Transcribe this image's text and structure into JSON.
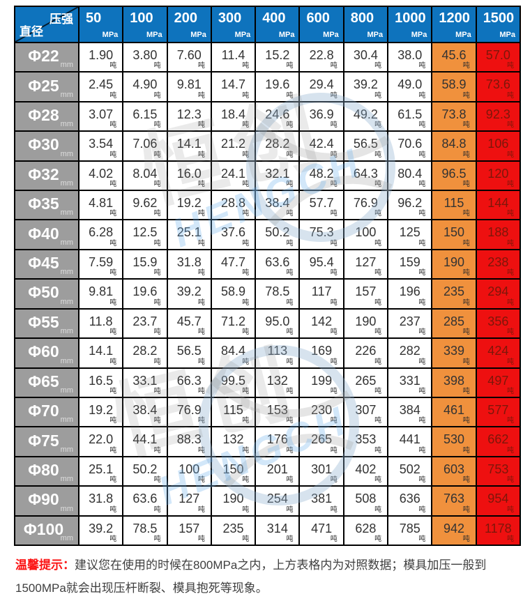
{
  "chart_data": {
    "type": "table",
    "corner_top_right": "压强",
    "corner_bottom_left": "直径",
    "pressure_unit": "MPa",
    "diameter_unit": "mm",
    "value_unit": "吨",
    "columns": [
      "50",
      "100",
      "200",
      "300",
      "400",
      "600",
      "800",
      "1000",
      "1200",
      "1500"
    ],
    "highlight": {
      "warning_column_index": 8,
      "danger_column_index": 9
    },
    "rows": [
      {
        "diameter": "Φ22",
        "values": [
          "1.90",
          "3.80",
          "7.60",
          "11.4",
          "15.2",
          "22.8",
          "30.4",
          "38.0",
          "45.6",
          "57.0"
        ]
      },
      {
        "diameter": "Φ25",
        "values": [
          "2.45",
          "4.90",
          "9.81",
          "14.7",
          "19.6",
          "29.4",
          "39.2",
          "49.0",
          "58.9",
          "73.6"
        ]
      },
      {
        "diameter": "Φ28",
        "values": [
          "3.07",
          "6.15",
          "12.3",
          "18.4",
          "24.6",
          "36.9",
          "49.2",
          "61.5",
          "73.8",
          "92.3"
        ]
      },
      {
        "diameter": "Φ30",
        "values": [
          "3.54",
          "7.06",
          "14.1",
          "21.2",
          "28.2",
          "42.4",
          "56.5",
          "70.6",
          "84.8",
          "106"
        ]
      },
      {
        "diameter": "Φ32",
        "values": [
          "4.02",
          "8.04",
          "16.0",
          "24.1",
          "32.1",
          "48.2",
          "64.3",
          "80.4",
          "96.5",
          "120"
        ]
      },
      {
        "diameter": "Φ35",
        "values": [
          "4.81",
          "9.62",
          "19.2",
          "28.8",
          "38.4",
          "57.7",
          "76.9",
          "96.2",
          "115",
          "144"
        ]
      },
      {
        "diameter": "Φ40",
        "values": [
          "6.28",
          "12.5",
          "25.1",
          "37.6",
          "50.2",
          "75.3",
          "100",
          "125",
          "150",
          "188"
        ]
      },
      {
        "diameter": "Φ45",
        "values": [
          "7.59",
          "15.9",
          "31.8",
          "47.7",
          "63.6",
          "95.4",
          "127",
          "159",
          "190",
          "238"
        ]
      },
      {
        "diameter": "Φ50",
        "values": [
          "9.81",
          "19.6",
          "39.2",
          "58.9",
          "78.5",
          "117",
          "157",
          "196",
          "235",
          "294"
        ]
      },
      {
        "diameter": "Φ55",
        "values": [
          "11.8",
          "23.7",
          "45.7",
          "71.2",
          "95.0",
          "142",
          "190",
          "237",
          "285",
          "356"
        ]
      },
      {
        "diameter": "Φ60",
        "values": [
          "14.1",
          "28.2",
          "56.5",
          "84.4",
          "113",
          "169",
          "226",
          "282",
          "339",
          "424"
        ]
      },
      {
        "diameter": "Φ65",
        "values": [
          "16.5",
          "33.1",
          "66.3",
          "99.5",
          "132",
          "199",
          "265",
          "331",
          "398",
          "497"
        ]
      },
      {
        "diameter": "Φ70",
        "values": [
          "19.2",
          "38.4",
          "76.9",
          "115",
          "153",
          "230",
          "307",
          "384",
          "461",
          "577"
        ]
      },
      {
        "diameter": "Φ75",
        "values": [
          "22.0",
          "44.1",
          "88.3",
          "132",
          "176",
          "265",
          "353",
          "441",
          "530",
          "662"
        ]
      },
      {
        "diameter": "Φ80",
        "values": [
          "25.1",
          "50.2",
          "100",
          "150",
          "201",
          "301",
          "402",
          "502",
          "603",
          "753"
        ]
      },
      {
        "diameter": "Φ90",
        "values": [
          "31.8",
          "63.6",
          "127",
          "190",
          "254",
          "381",
          "508",
          "636",
          "763",
          "954"
        ]
      },
      {
        "diameter": "Φ100",
        "values": [
          "39.2",
          "78.5",
          "157",
          "235",
          "314",
          "471",
          "628",
          "785",
          "942",
          "1178"
        ]
      }
    ]
  },
  "colors": {
    "header_blue": "#0e73bd",
    "row_header_gray": "#9d9d9d",
    "warning_orange": "#f0913d",
    "danger_red": "#ee1010",
    "note_red": "#fb1414"
  },
  "watermark": {
    "brand_cn": "恒创",
    "brand_en": "HENGCH"
  },
  "note": {
    "prefix": "温馨提示：",
    "body": "建议您在使用的时候在800MPa之内，上方表格内为对照数据；模具加压一般到1500MPa就会出现压杆断裂、模具抱死等现象。"
  }
}
